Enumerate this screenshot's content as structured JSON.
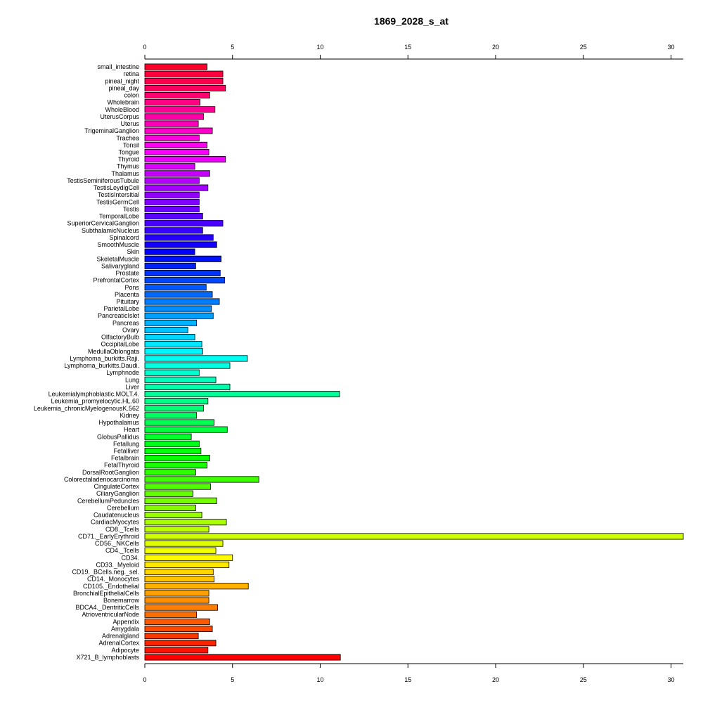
{
  "chart_data": {
    "type": "bar",
    "orientation": "horizontal",
    "title": "1869_2028_s_at",
    "xlabel": "",
    "ylabel": "",
    "xlim": [
      0,
      30.7
    ],
    "xticks": [
      0,
      5,
      10,
      15,
      20,
      25,
      30
    ],
    "grid": false,
    "legend": "none",
    "categories": [
      "small_intestine",
      "retina",
      "pineal_night",
      "pineal_day",
      "colon",
      "Wholebrain",
      "WholeBlood",
      "UterusCorpus",
      "Uterus",
      "TrigeminalGanglion",
      "Trachea",
      "Tonsil",
      "Tongue",
      "Thyroid",
      "Thymus",
      "Thalamus",
      "TestisSeminiferousTubule",
      "TestisLeydigCell",
      "TestisIntersitial",
      "TestisGermCell",
      "Testis",
      "TemporalLobe",
      "SuperiorCervicalGanglion",
      "SubthalamicNucleus",
      "Spinalcord",
      "SmoothMuscle",
      "Skin",
      "SkeletalMuscle",
      "Salivarygland",
      "Prostate",
      "PrefrontalCortex",
      "Pons",
      "Placenta",
      "Pituitary",
      "ParietalLobe",
      "PancreaticIslet",
      "Pancreas",
      "Ovary",
      "OlfactoryBulb",
      "OccipitalLobe",
      "MedullaOblongata",
      "Lymphoma_burkitts.Raji.",
      "Lymphoma_burkitts.Daudi.",
      "Lymphnode",
      "Lung",
      "Liver",
      "Leukemialymphoblastic.MOLT.4.",
      "Leukemia_promyelocytic.HL.60",
      "Leukemia_chronicMyelogenousK.562",
      "Kidney",
      "Hypothalamus",
      "Heart",
      "GlobusPallidus",
      "Fetallung",
      "Fetalliver",
      "Fetalbrain",
      "FetalThyroid",
      "DorsalRootGanglion",
      "Colorectaladenocarcinoma",
      "CingulateCortex",
      "CiliaryGanglion",
      "CerebellumPeduncles",
      "Cerebellum",
      "Caudatenucleus",
      "CardiacMyocytes",
      "CD8._Tcells",
      "CD71._EarlyErythroid",
      "CD56._NKCells",
      "CD4._Tcells",
      "CD34.",
      "CD33._Myeloid",
      "CD19._BCells.neg._sel.",
      "CD14._Monocytes",
      "CD105._Endothelial",
      "BronchialEpithelialCells",
      "Bonemarrow",
      "BDCA4._DentriticCells",
      "AtrioventricularNode",
      "Appendix",
      "Amygdala",
      "Adrenalgland",
      "AdrenalCortex",
      "Adipocyte",
      "X721_B_lymphoblasts"
    ],
    "values": [
      3.55,
      4.45,
      4.45,
      4.6,
      3.7,
      3.15,
      4.0,
      3.35,
      3.05,
      3.85,
      3.1,
      3.55,
      3.65,
      4.6,
      2.85,
      3.7,
      3.1,
      3.6,
      3.1,
      3.1,
      3.1,
      3.3,
      4.45,
      3.3,
      3.9,
      4.1,
      2.85,
      4.35,
      2.9,
      4.3,
      4.55,
      3.5,
      3.85,
      4.25,
      3.8,
      3.9,
      2.95,
      2.45,
      2.85,
      3.25,
      3.3,
      5.85,
      4.85,
      3.1,
      4.05,
      4.85,
      11.1,
      3.6,
      3.35,
      2.95,
      3.95,
      4.7,
      2.65,
      3.1,
      3.2,
      3.7,
      3.55,
      2.9,
      6.5,
      3.75,
      2.75,
      4.1,
      2.9,
      3.25,
      4.65,
      3.65,
      30.7,
      4.45,
      4.05,
      5.0,
      4.8,
      3.9,
      3.95,
      5.9,
      3.65,
      3.65,
      4.15,
      2.95,
      3.7,
      3.85,
      3.05,
      4.05,
      3.6,
      11.15
    ]
  }
}
